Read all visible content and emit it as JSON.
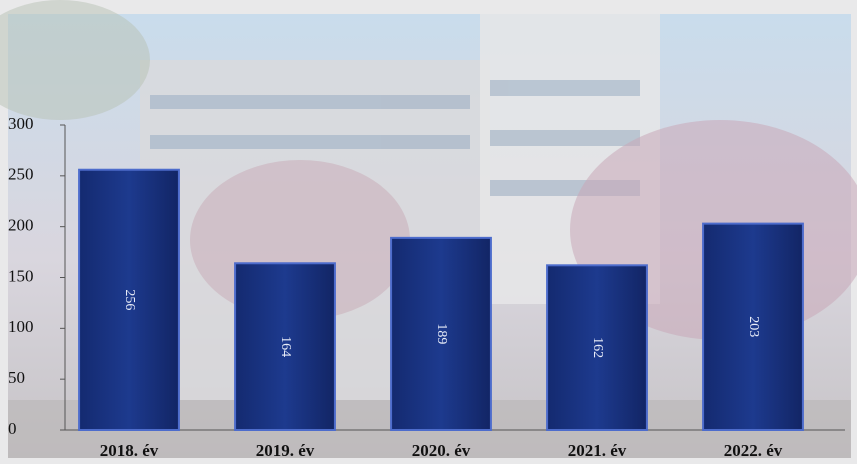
{
  "chart_data": {
    "type": "bar",
    "categories": [
      "2018. év",
      "2019. év",
      "2020. év",
      "2021. év",
      "2022. év"
    ],
    "values": [
      256,
      164,
      189,
      162,
      203
    ],
    "color": "#1a3383",
    "ylim": [
      0,
      300
    ],
    "yticks": [
      0,
      50,
      100,
      150,
      200,
      250,
      300
    ]
  }
}
